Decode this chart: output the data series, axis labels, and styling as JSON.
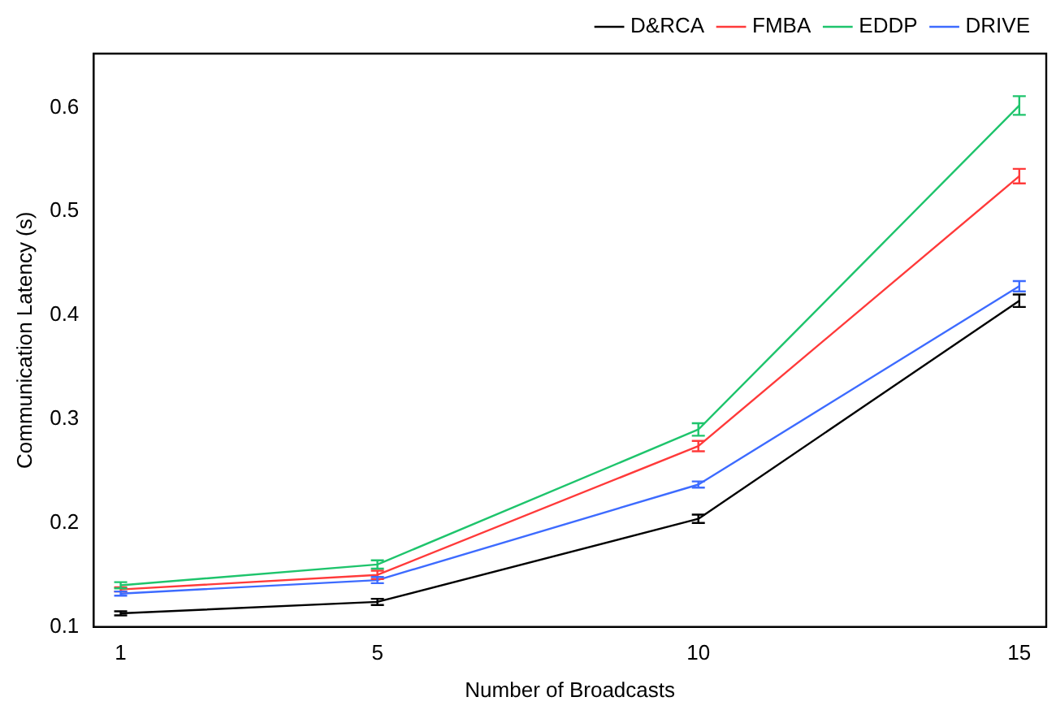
{
  "chart_data": {
    "type": "line",
    "xlabel": "Number of Broadcasts",
    "ylabel": "Communication Latency (s)",
    "x": [
      1,
      5,
      10,
      15
    ],
    "xlim": [
      0.58,
      15.42
    ],
    "xticks": [
      1,
      5,
      10,
      15
    ],
    "ylim": [
      0.1,
      0.652
    ],
    "yticks": [
      0.1,
      0.2,
      0.3,
      0.4,
      0.5,
      0.6
    ],
    "grid": false,
    "legend": "top right",
    "line_style": "solid",
    "series": [
      {
        "name": "D&RCA",
        "color": "#000000",
        "values": [
          0.113,
          0.124,
          0.204,
          0.414
        ],
        "errors": [
          0.002,
          0.003,
          0.004,
          0.006
        ]
      },
      {
        "name": "FMBA",
        "color": "#ff3a3a",
        "values": [
          0.136,
          0.15,
          0.274,
          0.534
        ],
        "errors": [
          0.002,
          0.004,
          0.005,
          0.007
        ]
      },
      {
        "name": "EDDP",
        "color": "#1ec46c",
        "values": [
          0.14,
          0.16,
          0.29,
          0.602
        ],
        "errors": [
          0.003,
          0.004,
          0.006,
          0.009
        ]
      },
      {
        "name": "DRIVE",
        "color": "#3d6bff",
        "values": [
          0.132,
          0.145,
          0.237,
          0.428
        ],
        "errors": [
          0.002,
          0.003,
          0.003,
          0.005
        ]
      }
    ]
  }
}
